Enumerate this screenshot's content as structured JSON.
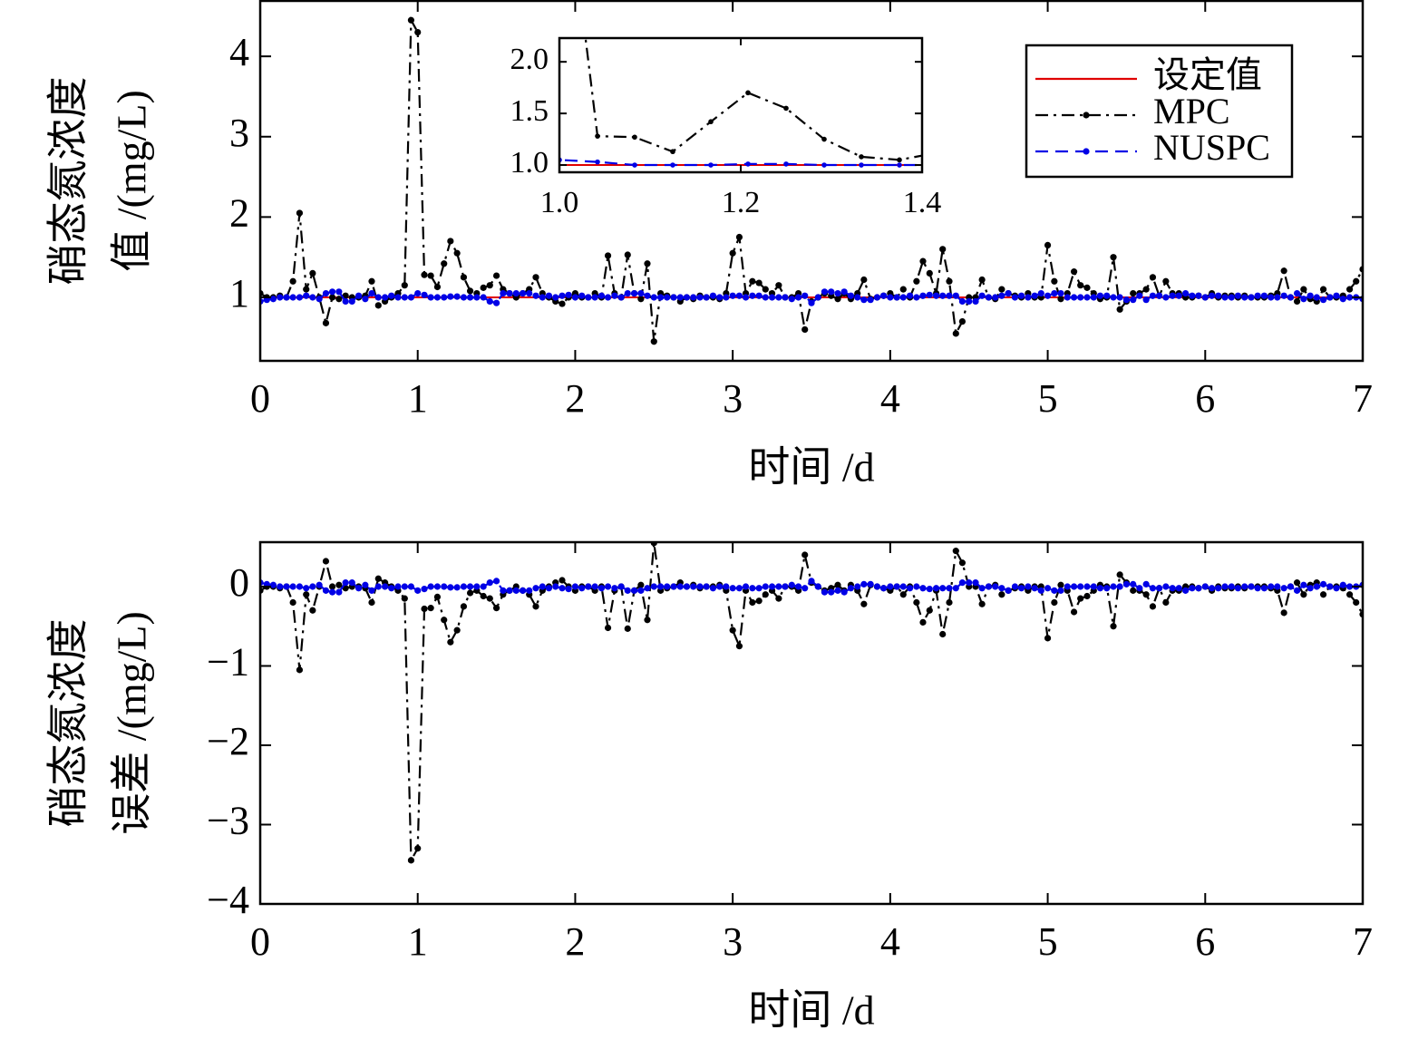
{
  "chart_data": [
    {
      "type": "line",
      "ylabel": [
        "硝态氮浓度",
        "值 /(mg/L)"
      ],
      "xlabel": "时间 /d",
      "xlim": [
        0,
        7
      ],
      "xticks": [
        0,
        1,
        2,
        3,
        4,
        5,
        6,
        7
      ],
      "ylim": [
        0.21,
        4.69
      ],
      "yticks": [
        1,
        2,
        3,
        4
      ],
      "legend": "upper right",
      "reference": {
        "name": "设定值",
        "value": 1,
        "color": "#e00000"
      },
      "x": [
        0,
        0.042,
        0.083,
        0.125,
        0.167,
        0.208,
        0.25,
        0.292,
        0.333,
        0.375,
        0.417,
        0.458,
        0.5,
        0.542,
        0.583,
        0.625,
        0.667,
        0.708,
        0.75,
        0.792,
        0.833,
        0.875,
        0.917,
        0.958,
        1,
        1.042,
        1.083,
        1.125,
        1.167,
        1.208,
        1.25,
        1.292,
        1.333,
        1.375,
        1.417,
        1.458,
        1.5,
        1.542,
        1.583,
        1.625,
        1.667,
        1.708,
        1.75,
        1.792,
        1.833,
        1.875,
        1.917,
        1.958,
        2,
        2.042,
        2.083,
        2.125,
        2.167,
        2.208,
        2.25,
        2.292,
        2.333,
        2.375,
        2.417,
        2.458,
        2.5,
        2.542,
        2.583,
        2.625,
        2.667,
        2.708,
        2.75,
        2.792,
        2.833,
        2.875,
        2.917,
        2.958,
        3,
        3.042,
        3.083,
        3.125,
        3.167,
        3.208,
        3.25,
        3.292,
        3.333,
        3.375,
        3.417,
        3.458,
        3.5,
        3.542,
        3.583,
        3.625,
        3.667,
        3.708,
        3.75,
        3.792,
        3.833,
        3.875,
        3.917,
        3.958,
        4,
        4.042,
        4.083,
        4.125,
        4.167,
        4.208,
        4.25,
        4.292,
        4.333,
        4.375,
        4.417,
        4.458,
        4.5,
        4.542,
        4.583,
        4.625,
        4.667,
        4.708,
        4.75,
        4.792,
        4.833,
        4.875,
        4.917,
        4.958,
        5,
        5.042,
        5.083,
        5.125,
        5.167,
        5.208,
        5.25,
        5.292,
        5.333,
        5.375,
        5.417,
        5.458,
        5.5,
        5.542,
        5.583,
        5.625,
        5.667,
        5.708,
        5.75,
        5.792,
        5.833,
        5.875,
        5.917,
        5.958,
        6,
        6.042,
        6.083,
        6.125,
        6.167,
        6.208,
        6.25,
        6.292,
        6.333,
        6.375,
        6.417,
        6.458,
        6.5,
        6.542,
        6.583,
        6.625,
        6.667,
        6.708,
        6.75,
        6.792,
        6.833,
        6.875,
        6.917,
        6.958,
        7
      ],
      "series": [
        {
          "name": "MPC",
          "color": "#000000",
          "linestyle": "-.",
          "values": [
            1.05,
            1.0,
            1.0,
            1.02,
            1.0,
            1.2,
            2.05,
            1.1,
            1.3,
            1.0,
            0.68,
            1.0,
            0.98,
            1.02,
            1.0,
            1.0,
            1.02,
            1.2,
            0.9,
            0.95,
            1.0,
            1.05,
            1.15,
            4.45,
            4.3,
            1.28,
            1.27,
            1.13,
            1.42,
            1.7,
            1.55,
            1.25,
            1.08,
            1.05,
            1.12,
            1.15,
            1.27,
            1.1,
            1.05,
            1.0,
            1.05,
            1.1,
            1.25,
            1.05,
            1.0,
            0.95,
            0.92,
            1.0,
            1.05,
            1.0,
            1.0,
            1.05,
            1.0,
            1.52,
            1.05,
            1.0,
            1.53,
            1.05,
            0.98,
            1.42,
            0.45,
            1.05,
            1.02,
            1.0,
            0.95,
            1.0,
            0.98,
            1.02,
            1.0,
            1.0,
            0.98,
            1.05,
            1.55,
            1.75,
            1.05,
            1.2,
            1.18,
            1.1,
            1.05,
            1.15,
            1.0,
            1.0,
            1.05,
            0.6,
            0.95,
            1.0,
            1.05,
            1.02,
            0.98,
            1.05,
            0.98,
            1.05,
            1.22,
            0.98,
            1.0,
            1.02,
            1.05,
            1.0,
            1.1,
            1.0,
            1.2,
            1.45,
            1.3,
            1.05,
            1.6,
            1.2,
            0.55,
            0.7,
            1.0,
            1.0,
            1.22,
            1.0,
            0.98,
            1.1,
            1.05,
            1.02,
            1.0,
            1.05,
            1.0,
            1.0,
            1.65,
            1.2,
            0.98,
            1.05,
            1.32,
            1.15,
            1.12,
            1.05,
            0.98,
            1.0,
            1.5,
            0.85,
            0.95,
            1.05,
            1.05,
            1.1,
            1.25,
            1.02,
            1.2,
            1.05,
            1.05,
            1.0,
            1.0,
            1.02,
            1.0,
            1.05,
            1.0,
            1.02,
            1.02,
            1.0,
            1.02,
            1.0,
            1.0,
            1.0,
            1.02,
            1.05,
            1.33,
            1.0,
            0.95,
            1.1,
            0.98,
            0.95,
            1.1,
            1.0,
            1.0,
            1.02,
            1.1,
            1.2,
            1.35
          ]
        },
        {
          "name": "NUSPC",
          "color": "#0000e6",
          "linestyle": "--",
          "values": [
            0.95,
            0.97,
            0.98,
            1.0,
            1.0,
            1.0,
            1.0,
            1.02,
            1.0,
            0.98,
            1.05,
            1.07,
            1.07,
            0.95,
            0.95,
            1.02,
            0.98,
            1.05,
            1.0,
            1.0,
            1.02,
            1.0,
            1.0,
            1.0,
            1.05,
            1.03,
            1.0,
            1.0,
            1.0,
            1.01,
            1.01,
            1.0,
            1.0,
            1.0,
            1.0,
            0.95,
            0.93,
            1.05,
            1.05,
            1.05,
            1.05,
            1.05,
            1.02,
            1.0,
            1.02,
            1.0,
            1.02,
            1.03,
            1.0,
            1.02,
            1.0,
            1.0,
            1.02,
            1.0,
            1.02,
            1.0,
            1.05,
            1.05,
            1.05,
            1.02,
            1.0,
            1.0,
            1.0,
            1.0,
            1.0,
            1.0,
            1.0,
            1.0,
            1.0,
            1.02,
            1.0,
            1.0,
            1.02,
            1.02,
            1.0,
            1.02,
            1.02,
            1.0,
            1.0,
            1.0,
            1.0,
            0.98,
            1.0,
            1.02,
            0.93,
            1.0,
            1.07,
            1.07,
            1.05,
            1.07,
            1.02,
            1.0,
            0.97,
            0.97,
            1.0,
            1.02,
            1.0,
            1.0,
            1.0,
            1.02,
            1.0,
            1.02,
            1.03,
            1.02,
            1.02,
            1.02,
            1.02,
            0.95,
            0.95,
            0.95,
            1.02,
            1.0,
            1.0,
            1.02,
            1.05,
            1.0,
            1.02,
            1.0,
            1.02,
            1.05,
            1.02,
            1.05,
            1.05,
            1.0,
            1.0,
            1.0,
            1.0,
            1.0,
            1.02,
            1.02,
            1.0,
            1.0,
            0.97,
            0.97,
            1.02,
            0.97,
            1.02,
            1.02,
            1.0,
            1.02,
            1.02,
            1.05,
            1.02,
            1.02,
            1.0,
            1.02,
            1.02,
            1.0,
            1.0,
            1.02,
            1.0,
            1.0,
            1.02,
            1.02,
            1.0,
            1.0,
            1.02,
            1.0,
            1.05,
            0.98,
            1.02,
            1.0,
            0.97,
            1.0,
            1.02,
            0.98,
            1.0,
            1.0,
            0.98
          ]
        }
      ],
      "inset": {
        "xlim": [
          1,
          1.4
        ],
        "xticks": [
          {
            "value": 1,
            "label": "1.0"
          },
          {
            "value": 1.2,
            "label": "1.2"
          },
          {
            "value": 1.4,
            "label": "1.4"
          }
        ],
        "ylim": [
          0.93,
          2.23
        ],
        "yticks": [
          {
            "value": 1,
            "label": "1.0"
          },
          {
            "value": 1.5,
            "label": "1.5"
          },
          {
            "value": 2,
            "label": "2.0"
          }
        ]
      }
    },
    {
      "type": "line",
      "ylabel": [
        "硝态氮浓度",
        "误差 /(mg/L)"
      ],
      "xlabel": "时间 /d",
      "xlim": [
        0,
        7
      ],
      "xticks": [
        0,
        1,
        2,
        3,
        4,
        5,
        6,
        7
      ],
      "ylim": [
        -4,
        0.56
      ],
      "yticks": [
        0,
        {
          "value": -1,
          "label": "−1"
        },
        {
          "value": -2,
          "label": "−2"
        },
        {
          "value": -3,
          "label": "−3"
        },
        {
          "value": -4,
          "label": "−4"
        }
      ],
      "x": [
        0,
        0.042,
        0.083,
        0.125,
        0.167,
        0.208,
        0.25,
        0.292,
        0.333,
        0.375,
        0.417,
        0.458,
        0.5,
        0.542,
        0.583,
        0.625,
        0.667,
        0.708,
        0.75,
        0.792,
        0.833,
        0.875,
        0.917,
        0.958,
        1,
        1.042,
        1.083,
        1.125,
        1.167,
        1.208,
        1.25,
        1.292,
        1.333,
        1.375,
        1.417,
        1.458,
        1.5,
        1.542,
        1.583,
        1.625,
        1.667,
        1.708,
        1.75,
        1.792,
        1.833,
        1.875,
        1.917,
        1.958,
        2,
        2.042,
        2.083,
        2.125,
        2.167,
        2.208,
        2.25,
        2.292,
        2.333,
        2.375,
        2.417,
        2.458,
        2.5,
        2.542,
        2.583,
        2.625,
        2.667,
        2.708,
        2.75,
        2.792,
        2.833,
        2.875,
        2.917,
        2.958,
        3,
        3.042,
        3.083,
        3.125,
        3.167,
        3.208,
        3.25,
        3.292,
        3.333,
        3.375,
        3.417,
        3.458,
        3.5,
        3.542,
        3.583,
        3.625,
        3.667,
        3.708,
        3.75,
        3.792,
        3.833,
        3.875,
        3.917,
        3.958,
        4,
        4.042,
        4.083,
        4.125,
        4.167,
        4.208,
        4.25,
        4.292,
        4.333,
        4.375,
        4.417,
        4.458,
        4.5,
        4.542,
        4.583,
        4.625,
        4.667,
        4.708,
        4.75,
        4.792,
        4.833,
        4.875,
        4.917,
        4.958,
        5,
        5.042,
        5.083,
        5.125,
        5.167,
        5.208,
        5.25,
        5.292,
        5.333,
        5.375,
        5.417,
        5.458,
        5.5,
        5.542,
        5.583,
        5.625,
        5.667,
        5.708,
        5.75,
        5.792,
        5.833,
        5.875,
        5.917,
        5.958,
        6,
        6.042,
        6.083,
        6.125,
        6.167,
        6.208,
        6.25,
        6.292,
        6.333,
        6.375,
        6.417,
        6.458,
        6.5,
        6.542,
        6.583,
        6.625,
        6.667,
        6.708,
        6.75,
        6.792,
        6.833,
        6.875,
        6.917,
        6.958,
        7
      ],
      "series": [
        {
          "name": "MPC",
          "color": "#000000",
          "linestyle": "-.",
          "values": [
            -0.05,
            0,
            0,
            -0.02,
            0,
            -0.2,
            -1.05,
            -0.1,
            -0.3,
            0,
            0.32,
            0,
            0.02,
            -0.02,
            0,
            0,
            -0.02,
            -0.2,
            0.1,
            0.05,
            0,
            -0.05,
            -0.15,
            -3.45,
            -3.3,
            -0.28,
            -0.27,
            -0.13,
            -0.42,
            -0.7,
            -0.55,
            -0.25,
            -0.08,
            -0.05,
            -0.12,
            -0.15,
            -0.27,
            -0.1,
            -0.05,
            0,
            -0.05,
            -0.1,
            -0.25,
            -0.05,
            0,
            0.05,
            0.08,
            0,
            -0.05,
            0,
            0,
            -0.05,
            0,
            -0.52,
            -0.05,
            0,
            -0.53,
            -0.05,
            0.02,
            -0.42,
            0.55,
            -0.05,
            -0.02,
            0,
            0.05,
            0,
            0.02,
            -0.02,
            0,
            0,
            0.02,
            -0.05,
            -0.55,
            -0.75,
            -0.05,
            -0.2,
            -0.18,
            -0.1,
            -0.05,
            -0.15,
            0,
            0,
            -0.05,
            0.4,
            0.05,
            0,
            -0.05,
            -0.02,
            0.02,
            -0.05,
            0.02,
            -0.05,
            -0.22,
            0.02,
            0,
            -0.02,
            -0.05,
            0,
            -0.1,
            0,
            -0.2,
            -0.45,
            -0.3,
            -0.05,
            -0.6,
            -0.2,
            0.45,
            0.3,
            0,
            0,
            -0.22,
            0,
            0.02,
            -0.1,
            -0.05,
            -0.02,
            0,
            -0.05,
            0,
            0,
            -0.65,
            -0.2,
            0.02,
            -0.05,
            -0.32,
            -0.15,
            -0.12,
            -0.05,
            0.02,
            0,
            -0.5,
            0.15,
            0.05,
            -0.05,
            -0.05,
            -0.1,
            -0.25,
            -0.02,
            -0.2,
            -0.05,
            -0.05,
            0,
            0,
            -0.02,
            0,
            -0.05,
            0,
            -0.02,
            -0.02,
            0,
            -0.02,
            0,
            0,
            0,
            -0.02,
            -0.05,
            -0.33,
            0,
            0.05,
            -0.1,
            0.02,
            0.05,
            -0.1,
            0,
            0,
            -0.02,
            -0.1,
            -0.2,
            -0.35
          ]
        },
        {
          "name": "NUSPC",
          "color": "#0000e6",
          "linestyle": "--",
          "values": [
            0.05,
            0.03,
            0.02,
            0,
            0,
            0,
            0,
            -0.02,
            0,
            0.02,
            -0.05,
            -0.07,
            -0.07,
            0.05,
            0.05,
            -0.02,
            0.02,
            -0.05,
            0,
            0,
            -0.02,
            0,
            0,
            0,
            -0.05,
            -0.03,
            0,
            0,
            0,
            -0.01,
            -0.01,
            0,
            0,
            0,
            0,
            0.05,
            0.07,
            -0.05,
            -0.05,
            -0.05,
            -0.05,
            -0.05,
            -0.02,
            0,
            -0.02,
            0,
            -0.02,
            -0.03,
            0,
            -0.02,
            0,
            0,
            -0.02,
            0,
            -0.02,
            0,
            -0.05,
            -0.05,
            -0.05,
            -0.02,
            0,
            0,
            0,
            0,
            0,
            0,
            0,
            0,
            0,
            -0.02,
            0,
            0,
            -0.02,
            -0.02,
            0,
            -0.02,
            -0.02,
            0,
            0,
            0,
            0,
            0.02,
            0,
            -0.02,
            0.07,
            0,
            -0.07,
            -0.07,
            -0.05,
            -0.07,
            -0.02,
            0,
            0.03,
            0.03,
            0,
            -0.02,
            0,
            0,
            0,
            -0.02,
            0,
            -0.02,
            -0.03,
            -0.02,
            -0.02,
            -0.02,
            -0.02,
            0.05,
            0.05,
            0.05,
            -0.02,
            0,
            0,
            -0.02,
            -0.05,
            0,
            -0.02,
            0,
            -0.02,
            -0.05,
            -0.02,
            -0.05,
            -0.05,
            0,
            0,
            0,
            0,
            0,
            -0.02,
            -0.02,
            0,
            0,
            0.03,
            0.03,
            -0.02,
            0.03,
            -0.02,
            -0.02,
            0,
            -0.02,
            -0.02,
            -0.05,
            -0.02,
            -0.02,
            0,
            -0.02,
            -0.02,
            0,
            0,
            -0.02,
            0,
            0,
            -0.02,
            -0.02,
            0,
            0,
            -0.02,
            0,
            -0.05,
            0.02,
            -0.02,
            0,
            0.03,
            0,
            -0.02,
            0.02,
            0,
            0,
            0.02
          ]
        }
      ]
    }
  ]
}
